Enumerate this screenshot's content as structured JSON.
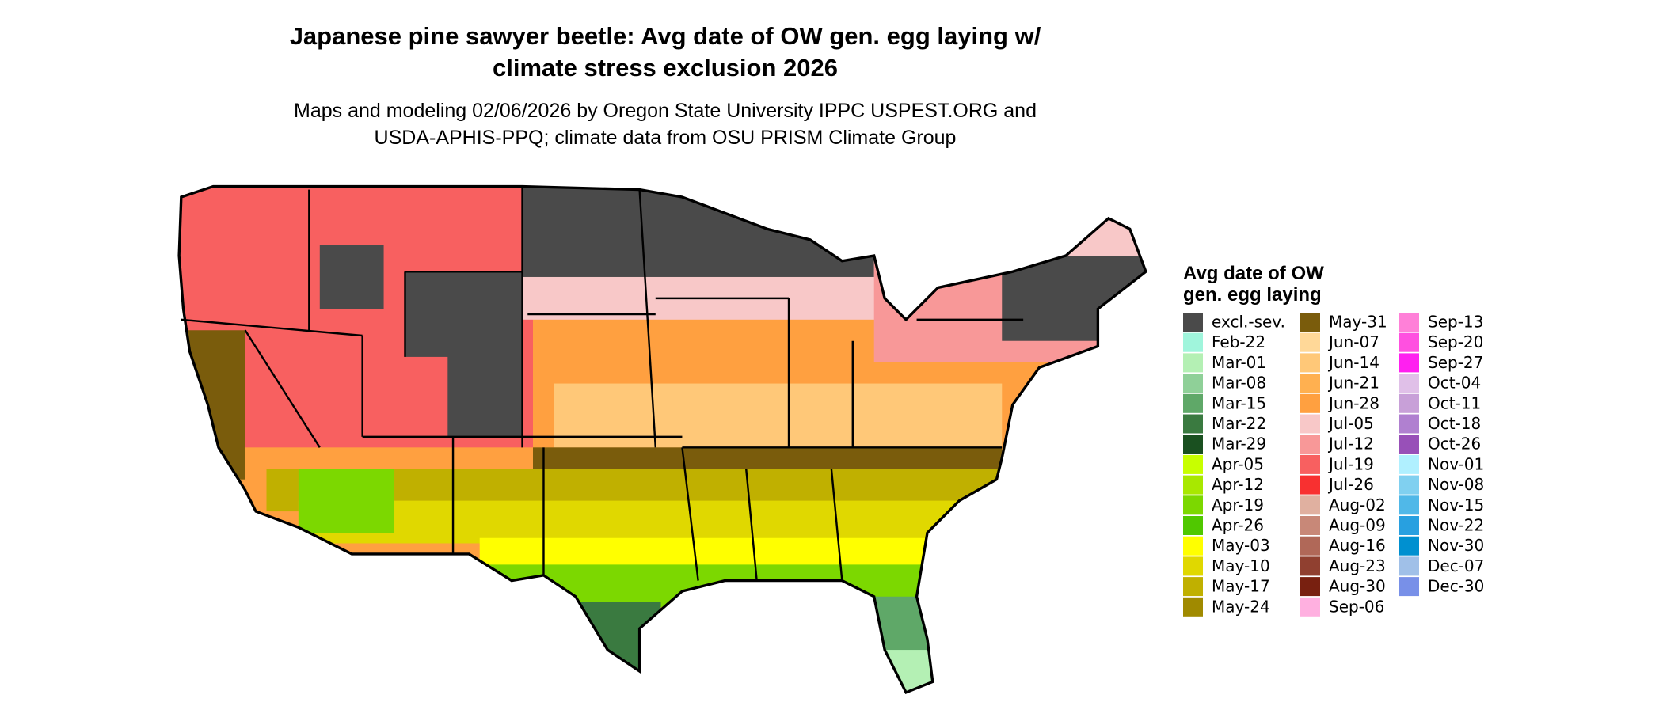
{
  "title": [
    "Japanese pine sawyer beetle: Avg date of OW gen. egg laying w/",
    "climate stress exclusion 2026"
  ],
  "subtitle": [
    "Maps and modeling 02/06/2026 by Oregon State University IPPC USPEST.ORG and",
    "USDA-APHIS-PPQ; climate data from OSU PRISM Climate Group"
  ],
  "legend": {
    "title": [
      "Avg date of OW",
      "gen. egg laying"
    ],
    "items": [
      {
        "label": "excl.-sev.",
        "color": "#4a4a4a"
      },
      {
        "label": "Feb-22",
        "color": "#a0f5dc"
      },
      {
        "label": "Mar-01",
        "color": "#b4f0b4"
      },
      {
        "label": "Mar-08",
        "color": "#8fd098"
      },
      {
        "label": "Mar-15",
        "color": "#5fa868"
      },
      {
        "label": "Mar-22",
        "color": "#3a7a40"
      },
      {
        "label": "Mar-29",
        "color": "#1a5020"
      },
      {
        "label": "Apr-05",
        "color": "#c8ff00"
      },
      {
        "label": "Apr-12",
        "color": "#a8e800"
      },
      {
        "label": "Apr-19",
        "color": "#7cd800"
      },
      {
        "label": "Apr-26",
        "color": "#50c800"
      },
      {
        "label": "May-03",
        "color": "#ffff00"
      },
      {
        "label": "May-10",
        "color": "#e0d800"
      },
      {
        "label": "May-17",
        "color": "#c0b000"
      },
      {
        "label": "May-24",
        "color": "#a08a00"
      },
      {
        "label": "May-31",
        "color": "#7a5c0c"
      },
      {
        "label": "Jun-07",
        "color": "#ffd898"
      },
      {
        "label": "Jun-14",
        "color": "#ffc878"
      },
      {
        "label": "Jun-21",
        "color": "#ffb050"
      },
      {
        "label": "Jun-28",
        "color": "#ffa040"
      },
      {
        "label": "Jul-05",
        "color": "#f8c8c8"
      },
      {
        "label": "Jul-12",
        "color": "#f89898"
      },
      {
        "label": "Jul-19",
        "color": "#f86060"
      },
      {
        "label": "Jul-26",
        "color": "#f83030"
      },
      {
        "label": "Aug-02",
        "color": "#e0b0a0"
      },
      {
        "label": "Aug-09",
        "color": "#c88878"
      },
      {
        "label": "Aug-16",
        "color": "#b06858"
      },
      {
        "label": "Aug-23",
        "color": "#904030"
      },
      {
        "label": "Aug-30",
        "color": "#782010"
      },
      {
        "label": "Sep-06",
        "color": "#ffb0e0"
      },
      {
        "label": "Sep-13",
        "color": "#ff80d8"
      },
      {
        "label": "Sep-20",
        "color": "#ff50e0"
      },
      {
        "label": "Sep-27",
        "color": "#ff20f0"
      },
      {
        "label": "Oct-04",
        "color": "#e0c0e8"
      },
      {
        "label": "Oct-11",
        "color": "#c8a0d8"
      },
      {
        "label": "Oct-18",
        "color": "#b080d0"
      },
      {
        "label": "Oct-26",
        "color": "#9850b8"
      },
      {
        "label": "Nov-01",
        "color": "#b0f0ff"
      },
      {
        "label": "Nov-08",
        "color": "#80d0f0"
      },
      {
        "label": "Nov-15",
        "color": "#50b8e8"
      },
      {
        "label": "Nov-22",
        "color": "#28a0e0"
      },
      {
        "label": "Nov-30",
        "color": "#0090d0"
      },
      {
        "label": "Dec-07",
        "color": "#a0c0e8"
      },
      {
        "label": "Dec-30",
        "color": "#7890e8"
      }
    ]
  }
}
